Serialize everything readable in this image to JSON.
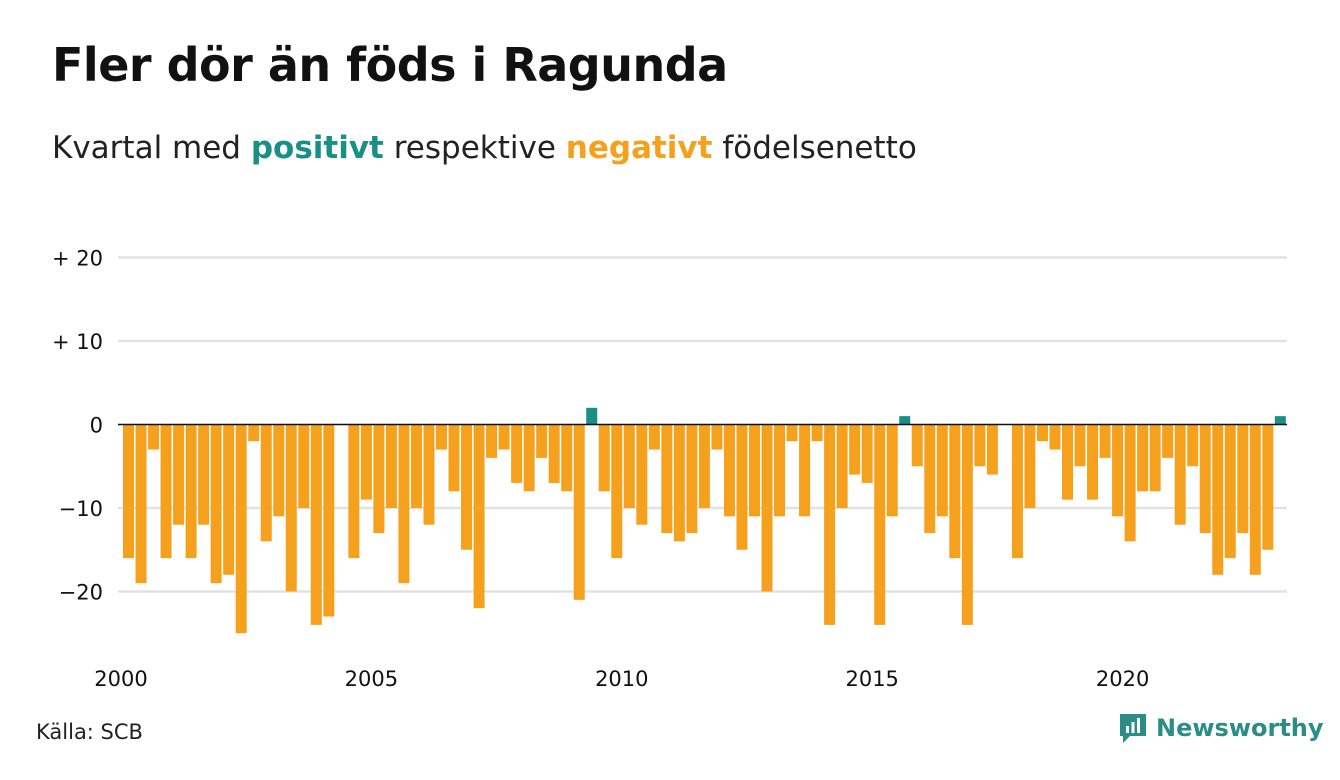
{
  "title": "Fler dör än föds i Ragunda",
  "subtitle": {
    "part1": "Kvartal med ",
    "positive": "positivt",
    "part2": " respektive ",
    "negative": "negativt",
    "part3": " födelsenetto"
  },
  "source": "Källa: SCB",
  "brand": {
    "name": "Newsworthy",
    "icon": "newsworthy-logo-icon",
    "color": "#2a8d86"
  },
  "colors": {
    "positive": "#1a8f85",
    "negative": "#f5a11d",
    "grid": "#e2e2e2",
    "zero_line": "#111111"
  },
  "chart_data": {
    "type": "bar",
    "title": "Fler dör än föds i Ragunda",
    "subtitle": "Kvartal med positivt respektive negativt födelsenetto",
    "xlabel": "",
    "ylabel": "",
    "ylim": [
      -26,
      22
    ],
    "y_ticks": [
      {
        "value": 20,
        "label": "+ 20"
      },
      {
        "value": 10,
        "label": "+ 10"
      },
      {
        "value": 0,
        "label": "0"
      },
      {
        "value": -10,
        "label": "−10"
      },
      {
        "value": -20,
        "label": "−20"
      }
    ],
    "x_ticks": [
      "2000",
      "2005",
      "2010",
      "2015",
      "2020"
    ],
    "grid": true,
    "start_year": 2000,
    "values": [
      -16,
      -19,
      -3,
      -16,
      -12,
      -16,
      -12,
      -19,
      -18,
      -25,
      -2,
      -14,
      -11,
      -20,
      -10,
      -24,
      -23,
      0,
      -16,
      -9,
      -13,
      -10,
      -19,
      -10,
      -12,
      -3,
      -8,
      -15,
      -22,
      -4,
      -3,
      -7,
      -8,
      -4,
      -7,
      -8,
      -21,
      2,
      -8,
      -16,
      -10,
      -12,
      -3,
      -13,
      -14,
      -13,
      -10,
      -3,
      -11,
      -15,
      -11,
      -20,
      -11,
      -2,
      -11,
      -2,
      -24,
      -10,
      -6,
      -7,
      -24,
      -11,
      1,
      -5,
      -13,
      -11,
      -16,
      -24,
      -5,
      -6,
      0,
      -16,
      -10,
      -2,
      -3,
      -9,
      -5,
      -9,
      -4,
      -11,
      -14,
      -8,
      -8,
      -4,
      -12,
      -5,
      -13,
      -18,
      -16,
      -13,
      -18,
      -15,
      1
    ]
  }
}
